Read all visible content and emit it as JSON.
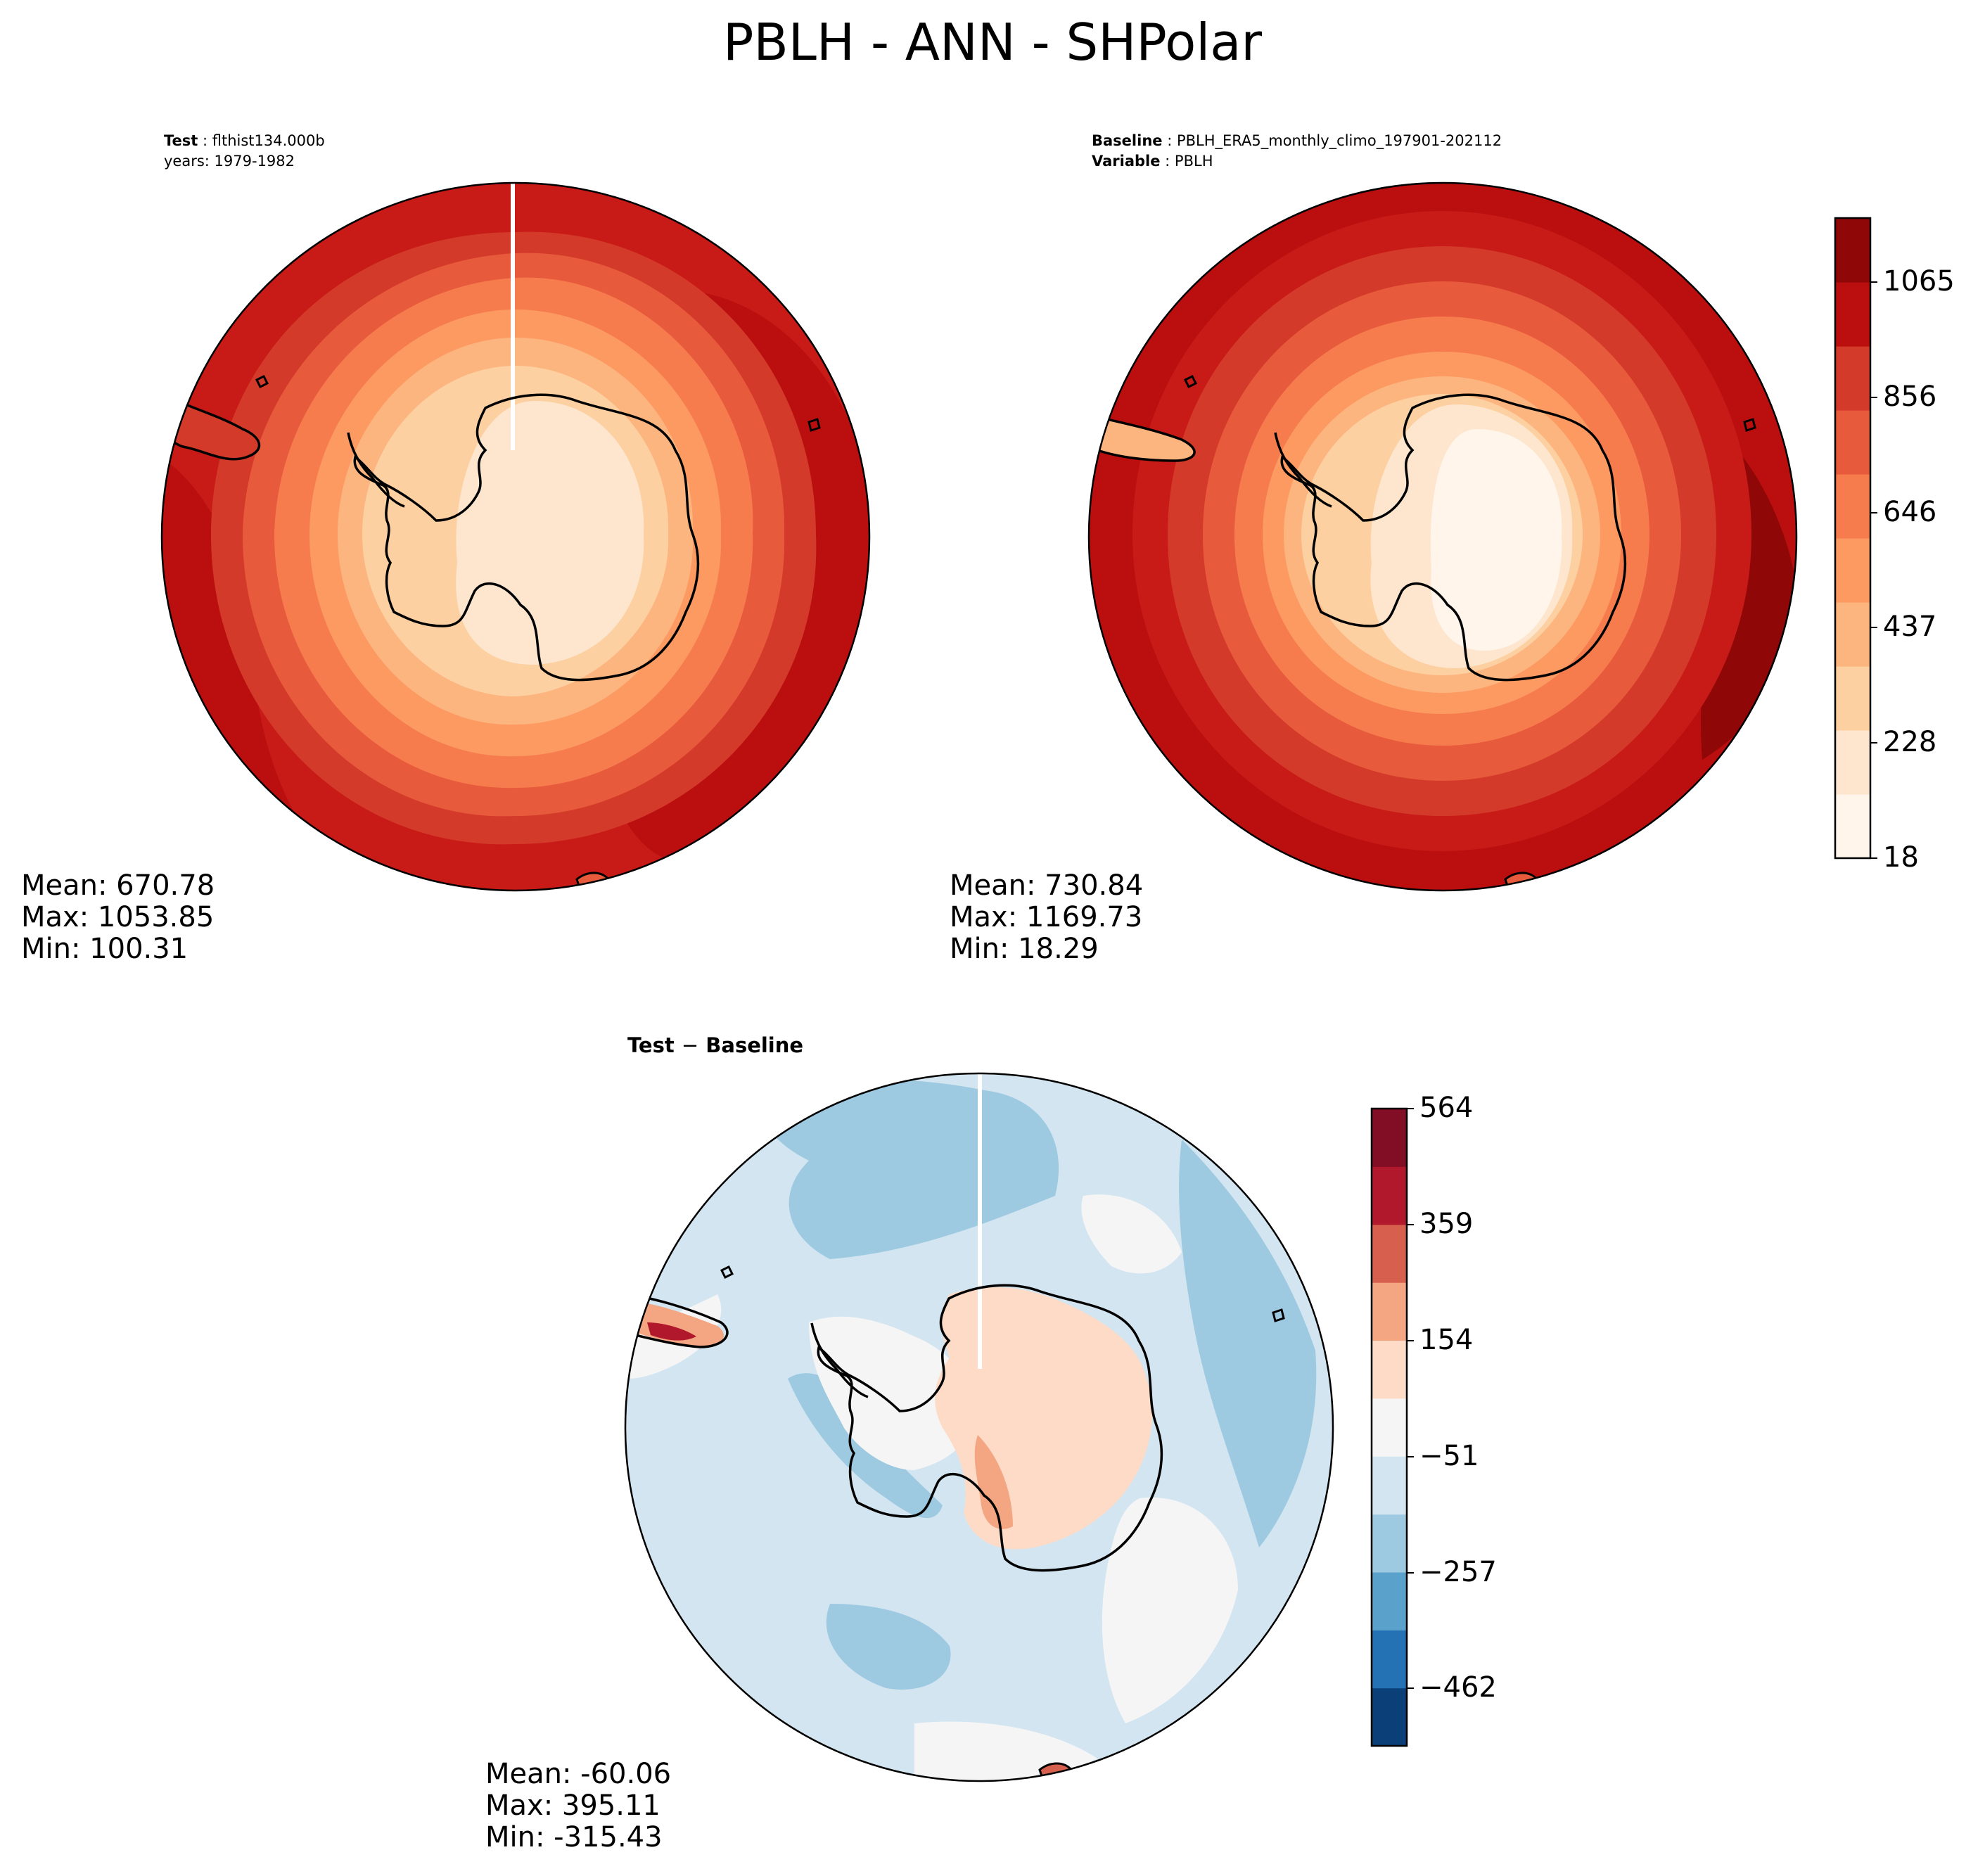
{
  "title": "PBLH - ANN - SHPolar",
  "panels": {
    "test": {
      "header_line1_label": "Test",
      "header_line1_value": "flthist134.000b",
      "header_line2": "years: 1979-1982",
      "stats": {
        "mean": "Mean: 670.78",
        "max": "Max: 1053.85",
        "min": "Min: 100.31"
      }
    },
    "baseline": {
      "header_line1_label": "Baseline",
      "header_line1_value": "PBLH_ERA5_monthly_climo_197901-202112",
      "header_line2_label": "Variable",
      "header_line2_value": "PBLH",
      "stats": {
        "mean": "Mean: 730.84",
        "max": "Max: 1169.73",
        "min": "Min: 18.29"
      }
    },
    "diff": {
      "header_label_a": "Test",
      "header_op": "−",
      "header_label_b": "Baseline",
      "stats": {
        "mean": "Mean: -60.06",
        "max": "Max: 395.11",
        "min": "Min: -315.43"
      }
    }
  },
  "colorbars": {
    "absolute": {
      "ticks": [
        "18",
        "228",
        "437",
        "646",
        "856",
        "1065"
      ],
      "colors": [
        "#fff5eb",
        "#fee6ce",
        "#fdd0a2",
        "#fdb57f",
        "#fc9a62",
        "#f67c4e",
        "#e85a3c",
        "#d43a2a",
        "#bb0f0f",
        "#8f0707"
      ]
    },
    "difference": {
      "ticks": [
        "564",
        "359",
        "154",
        "−51",
        "−257",
        "−462"
      ],
      "colors": [
        "#0b3f78",
        "#2471b4",
        "#5aa1cc",
        "#9ecae1",
        "#d2e5f1",
        "#f5f5f5",
        "#fddbc7",
        "#f4a582",
        "#d6604d",
        "#b2182b",
        "#820e25"
      ]
    }
  },
  "map_colors": {
    "ocean_far": "#c81a16",
    "ring_3": "#d43a2a",
    "ring_4": "#e85a3c",
    "ring_5": "#f67c4e",
    "ring_6": "#fdb57f",
    "ring_7": "#fdd0a2",
    "interior": "#fee6ce",
    "core": "#fff5eb",
    "deep": "#8f0707",
    "diff_bg": "#d2e5f1",
    "diff_mid": "#9ecae1",
    "diff_light": "#f5f5f5",
    "diff_pos": "#fddbc7",
    "diff_pos2": "#f4a582",
    "diff_pos3": "#b2182b"
  }
}
